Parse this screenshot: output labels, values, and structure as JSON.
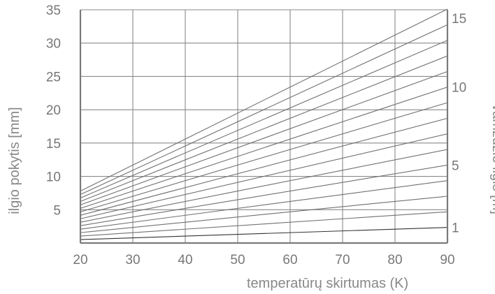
{
  "chart_data": {
    "type": "line",
    "xlabel": "temperatūrų skirtumas (K)",
    "ylabel": "ilgio pokytis [mm]",
    "y2label": "vamzdžio ilgis [m]",
    "x_ticks": [
      20,
      30,
      40,
      50,
      60,
      70,
      80,
      90
    ],
    "y_ticks": [
      5,
      10,
      15,
      20,
      25,
      30,
      35
    ],
    "y2_ticks": [
      1,
      5,
      10,
      15
    ],
    "xlim": [
      20,
      90
    ],
    "ylim": [
      0,
      35
    ],
    "grid": true,
    "series": [
      {
        "pipe_length_m": 1,
        "values": [
          [
            20,
            0.52
          ],
          [
            90,
            2.34
          ]
        ]
      },
      {
        "pipe_length_m": 2,
        "values": [
          [
            20,
            1.04
          ],
          [
            90,
            4.68
          ]
        ]
      },
      {
        "pipe_length_m": 3,
        "values": [
          [
            20,
            1.56
          ],
          [
            90,
            7.02
          ]
        ]
      },
      {
        "pipe_length_m": 4,
        "values": [
          [
            20,
            2.08
          ],
          [
            90,
            9.36
          ]
        ]
      },
      {
        "pipe_length_m": 5,
        "values": [
          [
            20,
            2.6
          ],
          [
            90,
            11.7
          ]
        ]
      },
      {
        "pipe_length_m": 6,
        "values": [
          [
            20,
            3.12
          ],
          [
            90,
            14.04
          ]
        ]
      },
      {
        "pipe_length_m": 7,
        "values": [
          [
            20,
            3.64
          ],
          [
            90,
            16.38
          ]
        ]
      },
      {
        "pipe_length_m": 8,
        "values": [
          [
            20,
            4.16
          ],
          [
            90,
            18.72
          ]
        ]
      },
      {
        "pipe_length_m": 9,
        "values": [
          [
            20,
            4.68
          ],
          [
            90,
            21.06
          ]
        ]
      },
      {
        "pipe_length_m": 10,
        "values": [
          [
            20,
            5.2
          ],
          [
            90,
            23.4
          ]
        ]
      },
      {
        "pipe_length_m": 11,
        "values": [
          [
            20,
            5.72
          ],
          [
            90,
            25.74
          ]
        ]
      },
      {
        "pipe_length_m": 12,
        "values": [
          [
            20,
            6.24
          ],
          [
            90,
            28.08
          ]
        ]
      },
      {
        "pipe_length_m": 13,
        "values": [
          [
            20,
            6.76
          ],
          [
            90,
            30.42
          ]
        ]
      },
      {
        "pipe_length_m": 14,
        "values": [
          [
            20,
            7.28
          ],
          [
            90,
            32.76
          ]
        ]
      },
      {
        "pipe_length_m": 15,
        "values": [
          [
            20,
            7.8
          ],
          [
            90,
            35.1
          ]
        ]
      }
    ]
  }
}
